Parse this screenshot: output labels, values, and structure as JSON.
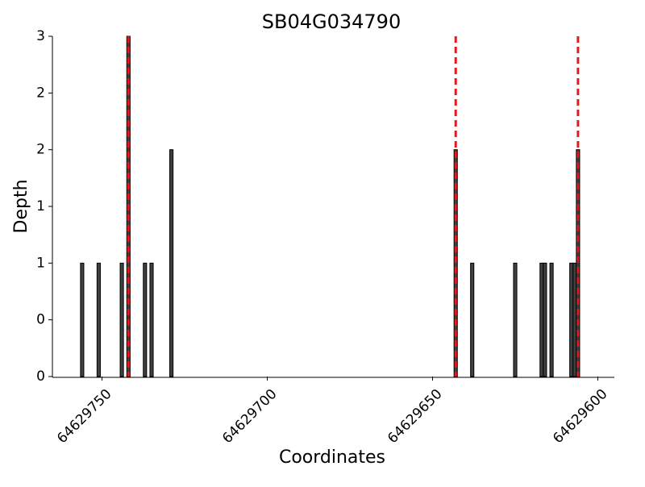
{
  "chart_data": {
    "type": "bar",
    "title": "SB04G034790",
    "x_label": "Coordinates",
    "y_label": "Depth",
    "x": [
      64629756,
      64629751,
      64629744,
      64629742,
      64629737,
      64629735,
      64629729,
      64629643,
      64629638,
      64629625,
      64629617,
      64629616,
      64629614,
      64629608,
      64629607,
      64629606
    ],
    "values": [
      1,
      1,
      1,
      3,
      1,
      1,
      2,
      2,
      1,
      1,
      1,
      1,
      1,
      1,
      1,
      2
    ],
    "color": "#404040",
    "marker_lines": [
      64629742,
      64629643,
      64629606
    ],
    "marker_color": "#e31a1c",
    "xlim": [
      64629765,
      64629595
    ],
    "xticks": [
      64629750,
      64629700,
      64629650,
      64629600
    ],
    "ylim": [
      0,
      3
    ],
    "yticks": [
      0,
      {
        "value": 0.5,
        "label": "0"
      },
      1,
      {
        "value": 1.5,
        "label": "1"
      },
      2,
      {
        "value": 2.5,
        "label": "2"
      },
      3
    ]
  }
}
